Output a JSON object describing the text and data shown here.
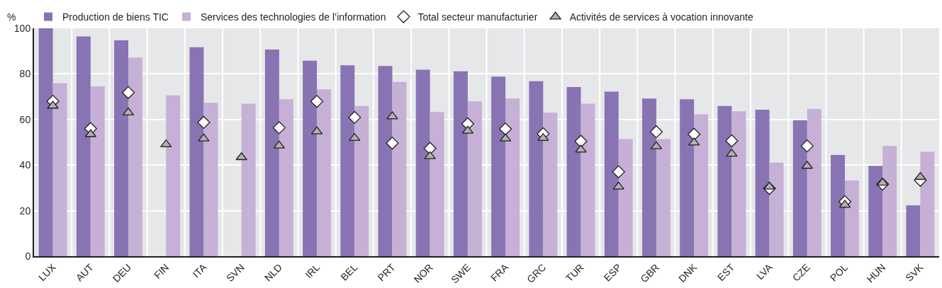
{
  "chart_data": {
    "type": "bar",
    "ylabel": "%",
    "categories": [
      "LUX",
      "AUT",
      "DEU",
      "FIN",
      "ITA",
      "SVN",
      "NLD",
      "IRL",
      "BEL",
      "PRT",
      "NOR",
      "SWE",
      "FRA",
      "GRC",
      "TUR",
      "ESP",
      "GBR",
      "DNK",
      "EST",
      "LVA",
      "CZE",
      "POL",
      "HUN",
      "SVK"
    ],
    "series": [
      {
        "name": "Production de biens TIC",
        "color": "#8873b3",
        "values": [
          100,
          96.4,
          94.7,
          null,
          91.7,
          null,
          90.7,
          85.8,
          83.8,
          83.5,
          81.8,
          81.1,
          78.8,
          76.8,
          74.2,
          72.2,
          69.2,
          68.9,
          65.9,
          64.3,
          59.6,
          44.4,
          39.6,
          22.3
        ]
      },
      {
        "name": "Services des technologies de l’information",
        "color": "#c6b0d5",
        "values": [
          75.9,
          74.5,
          87.1,
          70.6,
          67.3,
          66.9,
          68.9,
          73.2,
          65.9,
          76.5,
          63.3,
          67.9,
          69.2,
          63,
          66.9,
          51.4,
          51.4,
          62.3,
          63.6,
          41.1,
          64.6,
          33.2,
          48.4,
          45.8
        ]
      },
      {
        "name": "Total secteur manufacturier",
        "type": "scatter",
        "marker": "diamond",
        "color": "#ffffff",
        "values": [
          68,
          56,
          71.8,
          null,
          58.7,
          null,
          56.4,
          67.9,
          60.9,
          49.6,
          47.3,
          58.1,
          55.8,
          53.7,
          50.4,
          37,
          54.6,
          53.5,
          50.6,
          29.7,
          48.4,
          23.9,
          31.6,
          33.3
        ]
      },
      {
        "name": "Activités de services à vocation innovante",
        "type": "scatter",
        "marker": "triangle",
        "color": "#b1b1b1",
        "values": [
          66,
          53.5,
          63,
          49,
          51.6,
          43.4,
          48.5,
          54.7,
          51.8,
          61.3,
          43.8,
          55,
          51.6,
          51.8,
          46.7,
          30.5,
          48.2,
          49.8,
          44.9,
          30.5,
          39.6,
          22.5,
          32.2,
          34.7
        ]
      }
    ],
    "ylim": [
      0,
      100
    ],
    "yticks": [
      0,
      20,
      40,
      60,
      80,
      100
    ],
    "grid": true,
    "legend": "top"
  }
}
